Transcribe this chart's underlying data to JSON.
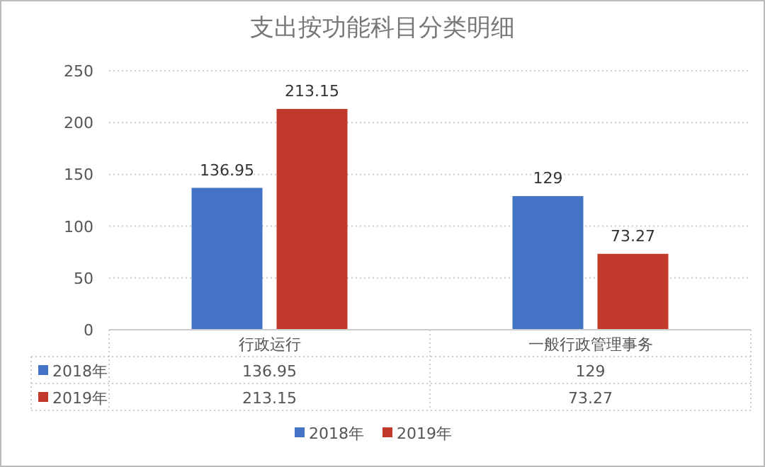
{
  "chart_data": {
    "type": "bar",
    "title": "支出按功能科目分类明细",
    "categories": [
      "行政运行",
      "一般行政管理事务"
    ],
    "series": [
      {
        "name": "2018年",
        "color": "#4472c4",
        "values": [
          136.95,
          129
        ],
        "value_labels": [
          "136.95",
          "129"
        ]
      },
      {
        "name": "2019年",
        "color": "#c0392b",
        "values": [
          213.15,
          73.27
        ],
        "value_labels": [
          "213.15",
          "73.27"
        ]
      }
    ],
    "ylim": [
      0,
      250
    ],
    "yticks": [
      0,
      50,
      100,
      150,
      200,
      250
    ],
    "grid": "y",
    "legend": "bottom",
    "annotations": [
      "136.95",
      "129",
      "213.15",
      "73.27"
    ]
  }
}
